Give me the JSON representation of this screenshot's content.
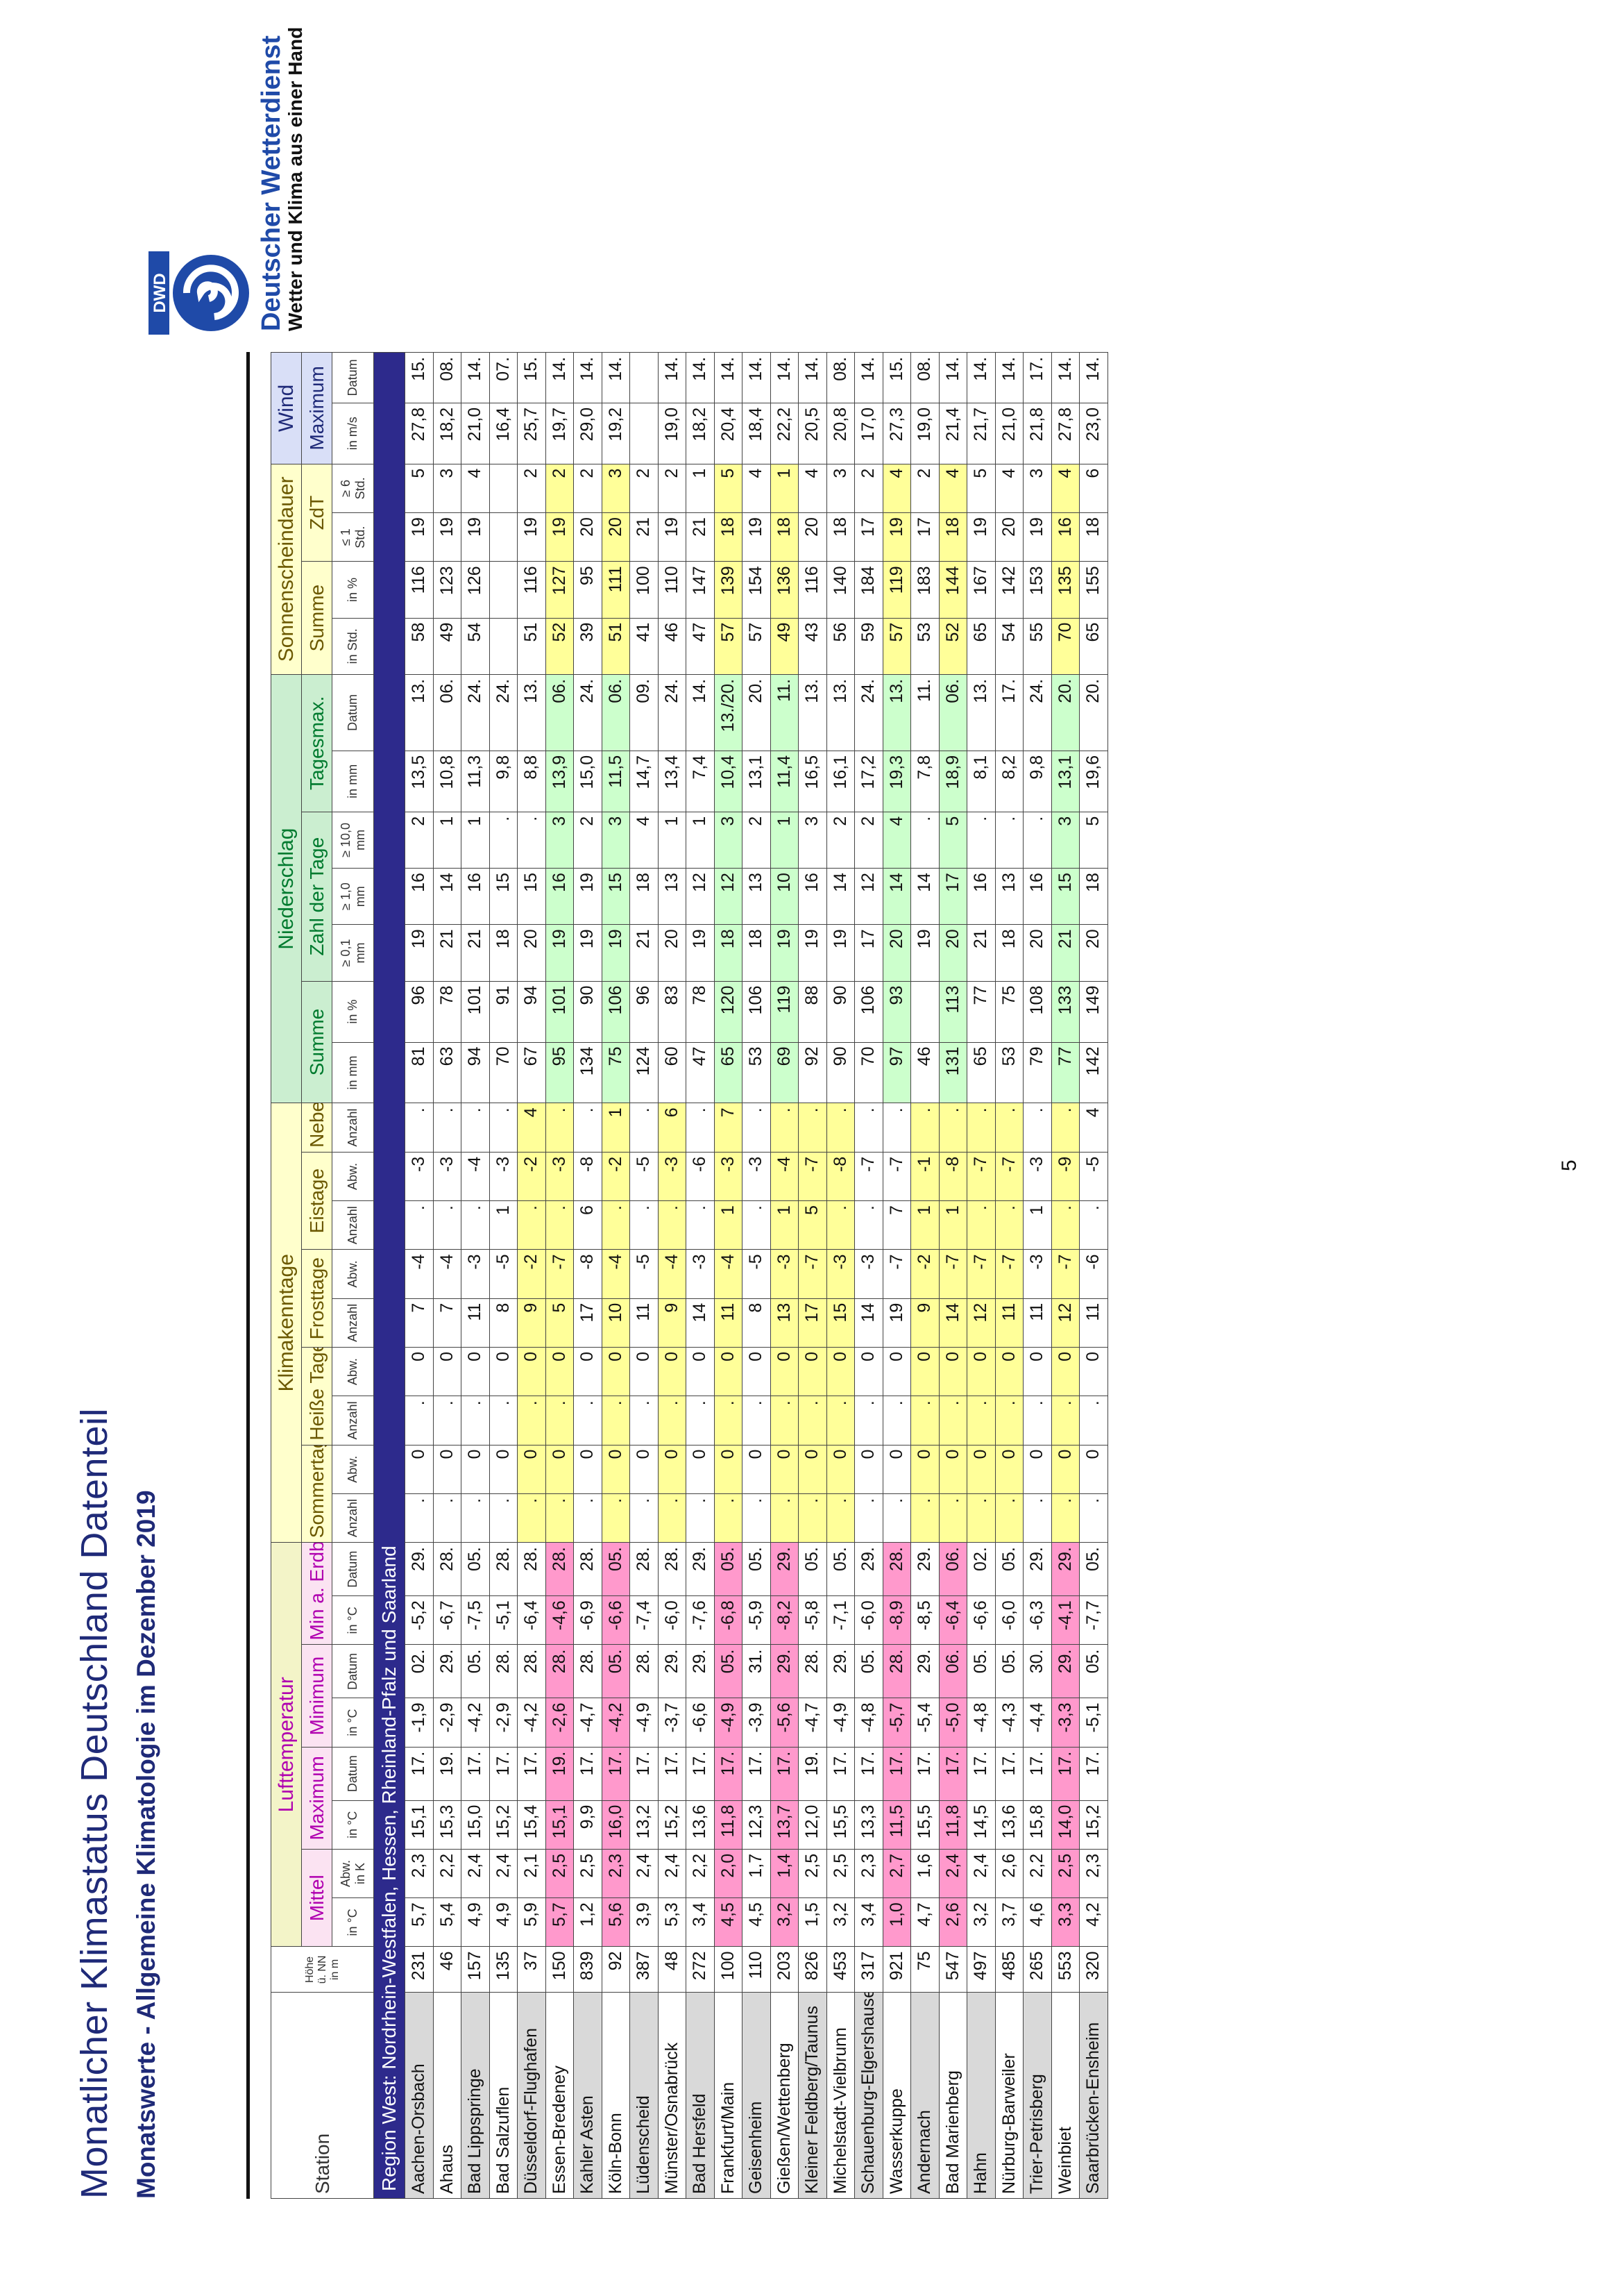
{
  "title": "Monatlicher Klimastatus Deutschland Datenteil",
  "subtitle": "Monatswerte - Allgemeine Klimatologie im Dezember 2019",
  "brand": {
    "name": "Deutscher Wetterdienst",
    "tagline": "Wetter und Klima aus einer Hand",
    "logo_text": "DWD"
  },
  "page_number": "5",
  "header": {
    "station": "Station",
    "hoehe": "Höhe ü. NN in m",
    "groups": {
      "luft": "Lufttemperatur",
      "klima": "Klimakenntage",
      "nieder": "Niederschlag",
      "sonne": "Sonnenscheindauer",
      "wind": "Wind"
    },
    "sub": {
      "mittel": "Mittel",
      "maximum": "Maximum",
      "minimum": "Minimum",
      "min_erdb": "Min a. Erdb",
      "sommertage": "Sommertage",
      "heisse": "Heiße Tage",
      "frosttage": "Frosttage",
      "eistage": "Eistage",
      "nebel": "Nebel",
      "summe": "Summe",
      "zahl": "Zahl der Tage",
      "tagesmax": "Tagesmax.",
      "sonne_summe": "Summe",
      "zst": "ZdT",
      "wind_max": "Maximum"
    },
    "units": [
      "in °C",
      "Abw. in K",
      "in °C",
      "Datum",
      "in °C",
      "Datum",
      "in °C",
      "Datum",
      "Anzahl",
      "Abw.",
      "Anzahl",
      "Abw.",
      "Anzahl",
      "Abw.",
      "Anzahl",
      "Abw.",
      "Anzahl",
      "in mm",
      "in %",
      "≥ 0,1 mm",
      "≥ 1,0 mm",
      "≥ 10,0 mm",
      "in mm",
      "Datum",
      "in Std.",
      "in %",
      "≤ 1 Std.",
      "≥ 6 Std.",
      "in m/s",
      "Datum"
    ]
  },
  "region": "Region West: Nordrhein-Westfalen, Hessen, Rheinland-Pfalz und Saarland",
  "rows": [
    [
      "Aachen-Orsbach",
      "231",
      "5,7",
      "2,3",
      "15,1",
      "17.",
      "-1,9",
      "02.",
      "-5,2",
      "29.",
      ".",
      "0",
      ".",
      "0",
      "7",
      "-4",
      ".",
      "-3",
      ".",
      "81",
      "96",
      "19",
      "16",
      "2",
      "13,5",
      "13.",
      "58",
      "116",
      "19",
      "5",
      "27,8",
      "15."
    ],
    [
      "Ahaus",
      "46",
      "5,4",
      "2,2",
      "15,3",
      "19.",
      "-2,9",
      "29.",
      "-6,7",
      "28.",
      ".",
      "0",
      ".",
      "0",
      "7",
      "-4",
      ".",
      "-3",
      ".",
      "63",
      "78",
      "21",
      "14",
      "1",
      "10,8",
      "06.",
      "49",
      "123",
      "19",
      "3",
      "18,2",
      "08."
    ],
    [
      "Bad Lippspringe",
      "157",
      "4,9",
      "2,4",
      "15,0",
      "17.",
      "-4,2",
      "05.",
      "-7,5",
      "05.",
      ".",
      "0",
      ".",
      "0",
      "11",
      "-3",
      ".",
      "-4",
      ".",
      "94",
      "101",
      "21",
      "16",
      "1",
      "11,3",
      "24.",
      "54",
      "126",
      "19",
      "4",
      "21,0",
      "14."
    ],
    [
      "Bad Salzuflen",
      "135",
      "4,9",
      "2,4",
      "15,2",
      "17.",
      "-2,9",
      "28.",
      "-5,1",
      "28.",
      ".",
      "0",
      ".",
      "0",
      "8",
      "-5",
      "1",
      "-3",
      ".",
      "70",
      "91",
      "18",
      "15",
      ".",
      "9,8",
      "24.",
      "",
      "",
      "",
      "",
      "16,4",
      "07."
    ],
    [
      "Düsseldorf-Flughafen",
      "37",
      "5,9",
      "2,1",
      "15,4",
      "17.",
      "-4,2",
      "28.",
      "-6,4",
      "28.",
      ".",
      "0",
      ".",
      "0",
      "9",
      "-2",
      ".",
      "-2",
      "4",
      "67",
      "94",
      "20",
      "15",
      ".",
      "8,8",
      "13.",
      "51",
      "116",
      "19",
      "2",
      "25,7",
      "15."
    ],
    [
      "Essen-Bredeney",
      "150",
      "5,7",
      "2,5",
      "15,1",
      "19.",
      "-2,6",
      "28.",
      "-4,6",
      "28.",
      ".",
      "0",
      ".",
      "0",
      "5",
      "-7",
      ".",
      "-3",
      ".",
      "95",
      "101",
      "19",
      "16",
      "3",
      "13,9",
      "06.",
      "52",
      "127",
      "19",
      "2",
      "19,7",
      "14."
    ],
    [
      "Kahler Asten",
      "839",
      "1,2",
      "2,5",
      "9,9",
      "17.",
      "-4,7",
      "28.",
      "-6,9",
      "28.",
      ".",
      "0",
      ".",
      "0",
      "17",
      "-8",
      "6",
      "-8",
      ".",
      "134",
      "90",
      "19",
      "19",
      "2",
      "15,0",
      "24.",
      "39",
      "95",
      "20",
      "2",
      "29,0",
      "14."
    ],
    [
      "Köln-Bonn",
      "92",
      "5,6",
      "2,3",
      "16,0",
      "17.",
      "-4,2",
      "05.",
      "-6,6",
      "05.",
      ".",
      "0",
      ".",
      "0",
      "10",
      "-4",
      ".",
      "-2",
      "1",
      "75",
      "106",
      "19",
      "15",
      "3",
      "11,5",
      "06.",
      "51",
      "111",
      "20",
      "3",
      "19,2",
      "14."
    ],
    [
      "Lüdenscheid",
      "387",
      "3,9",
      "2,4",
      "13,2",
      "17.",
      "-4,9",
      "28.",
      "-7,4",
      "28.",
      ".",
      "0",
      ".",
      "0",
      "11",
      "-5",
      ".",
      "-5",
      ".",
      "124",
      "96",
      "21",
      "18",
      "4",
      "14,7",
      "09.",
      "41",
      "100",
      "21",
      "2",
      "",
      ""
    ],
    [
      "Münster/Osnabrück",
      "48",
      "5,3",
      "2,4",
      "15,2",
      "17.",
      "-3,7",
      "29.",
      "-6,0",
      "28.",
      ".",
      "0",
      ".",
      "0",
      "9",
      "-4",
      ".",
      "-3",
      "6",
      "60",
      "83",
      "20",
      "13",
      "1",
      "13,4",
      "24.",
      "46",
      "110",
      "19",
      "2",
      "19,0",
      "14."
    ],
    [
      "Bad Hersfeld",
      "272",
      "3,4",
      "2,2",
      "13,6",
      "17.",
      "-6,6",
      "29.",
      "-7,6",
      "29.",
      ".",
      "0",
      ".",
      "0",
      "14",
      "-3",
      ".",
      "-6",
      ".",
      "47",
      "78",
      "19",
      "12",
      "1",
      "7,4",
      "14.",
      "47",
      "147",
      "21",
      "1",
      "18,2",
      "14."
    ],
    [
      "Frankfurt/Main",
      "100",
      "4,5",
      "2,0",
      "11,8",
      "17.",
      "-4,9",
      "05.",
      "-6,8",
      "05.",
      ".",
      "0",
      ".",
      "0",
      "11",
      "-4",
      "1",
      "-3",
      "7",
      "65",
      "120",
      "18",
      "12",
      "3",
      "10,4",
      "13./20.",
      "57",
      "139",
      "18",
      "5",
      "20,4",
      "14."
    ],
    [
      "Geisenheim",
      "110",
      "4,5",
      "1,7",
      "12,3",
      "17.",
      "-3,9",
      "31.",
      "-5,9",
      "05.",
      ".",
      "0",
      ".",
      "0",
      "8",
      "-5",
      ".",
      "-3",
      ".",
      "53",
      "106",
      "18",
      "13",
      "2",
      "13,1",
      "20.",
      "57",
      "154",
      "19",
      "4",
      "18,4",
      "14."
    ],
    [
      "Gießen/Wettenberg",
      "203",
      "3,2",
      "1,4",
      "13,7",
      "17.",
      "-5,6",
      "29.",
      "-8,2",
      "29.",
      ".",
      "0",
      ".",
      "0",
      "13",
      "-3",
      "1",
      "-4",
      ".",
      "69",
      "119",
      "19",
      "10",
      "1",
      "11,4",
      "11.",
      "49",
      "136",
      "18",
      "1",
      "22,2",
      "14."
    ],
    [
      "Kleiner Feldberg/Taunus",
      "826",
      "1,5",
      "2,5",
      "12,0",
      "19.",
      "-4,7",
      "28.",
      "-5,8",
      "05.",
      ".",
      "0",
      ".",
      "0",
      "17",
      "-7",
      "5",
      "-7",
      ".",
      "92",
      "88",
      "19",
      "16",
      "3",
      "16,5",
      "13.",
      "43",
      "116",
      "20",
      "4",
      "20,5",
      "14."
    ],
    [
      "Michelstadt-Vielbrunn",
      "453",
      "3,2",
      "2,5",
      "15,5",
      "17.",
      "-4,9",
      "29.",
      "-7,1",
      "05.",
      ".",
      "0",
      ".",
      "0",
      "15",
      "-3",
      ".",
      "-8",
      ".",
      "90",
      "90",
      "19",
      "14",
      "2",
      "16,1",
      "13.",
      "56",
      "140",
      "18",
      "3",
      "20,8",
      "08."
    ],
    [
      "Schauenburg-Elgershausen",
      "317",
      "3,4",
      "2,3",
      "13,3",
      "17.",
      "-4,8",
      "05.",
      "-6,0",
      "29.",
      ".",
      "0",
      ".",
      "0",
      "14",
      "-3",
      ".",
      "-7",
      ".",
      "70",
      "106",
      "17",
      "12",
      "2",
      "17,2",
      "24.",
      "59",
      "184",
      "17",
      "2",
      "17,0",
      "14."
    ],
    [
      "Wasserkuppe",
      "921",
      "1,0",
      "2,7",
      "11,5",
      "17.",
      "-5,7",
      "28.",
      "-8,9",
      "28.",
      ".",
      "0",
      ".",
      "0",
      "19",
      "-7",
      "7",
      "-7",
      ".",
      "97",
      "93",
      "20",
      "14",
      "4",
      "19,3",
      "13.",
      "57",
      "119",
      "19",
      "4",
      "27,3",
      "15."
    ],
    [
      "Andernach",
      "75",
      "4,7",
      "1,6",
      "15,5",
      "17.",
      "-5,4",
      "29.",
      "-8,5",
      "29.",
      ".",
      "0",
      ".",
      "0",
      "9",
      "-2",
      "1",
      "-1",
      ".",
      "46",
      "",
      "19",
      "14",
      ".",
      "7,8",
      "11.",
      "53",
      "183",
      "17",
      "2",
      "19,0",
      "08."
    ],
    [
      "Bad Marienberg",
      "547",
      "2,6",
      "2,4",
      "11,8",
      "17.",
      "-5,0",
      "06.",
      "-6,4",
      "06.",
      ".",
      "0",
      ".",
      "0",
      "14",
      "-7",
      "1",
      "-8",
      ".",
      "131",
      "113",
      "20",
      "17",
      "5",
      "18,9",
      "06.",
      "52",
      "144",
      "18",
      "4",
      "21,4",
      "14."
    ],
    [
      "Hahn",
      "497",
      "3,2",
      "2,4",
      "14,5",
      "17.",
      "-4,8",
      "05.",
      "-6,6",
      "02.",
      ".",
      "0",
      ".",
      "0",
      "12",
      "-7",
      ".",
      "-7",
      ".",
      "65",
      "77",
      "21",
      "16",
      ".",
      "8,1",
      "13.",
      "65",
      "167",
      "19",
      "5",
      "21,7",
      "14."
    ],
    [
      "Nürburg-Barweiler",
      "485",
      "3,7",
      "2,6",
      "13,6",
      "17.",
      "-4,3",
      "05.",
      "-6,0",
      "05.",
      ".",
      "0",
      ".",
      "0",
      "11",
      "-7",
      ".",
      "-7",
      ".",
      "53",
      "75",
      "18",
      "13",
      ".",
      "8,2",
      "17.",
      "54",
      "142",
      "20",
      "4",
      "21,0",
      "14."
    ],
    [
      "Trier-Petrisberg",
      "265",
      "4,6",
      "2,2",
      "15,8",
      "17.",
      "-4,4",
      "30.",
      "-6,3",
      "29.",
      ".",
      "0",
      ".",
      "0",
      "11",
      "-3",
      "1",
      "-3",
      ".",
      "79",
      "108",
      "20",
      "16",
      ".",
      "9,8",
      "24.",
      "55",
      "153",
      "19",
      "3",
      "21,8",
      "17."
    ],
    [
      "Weinbiet",
      "553",
      "3,3",
      "2,5",
      "14,0",
      "17.",
      "-3,3",
      "29.",
      "-4,1",
      "29.",
      ".",
      "0",
      ".",
      "0",
      "12",
      "-7",
      ".",
      "-9",
      ".",
      "77",
      "133",
      "21",
      "15",
      "3",
      "13,1",
      "20.",
      "70",
      "135",
      "16",
      "4",
      "27,8",
      "14."
    ],
    [
      "Saarbrücken-Ensheim",
      "320",
      "4,2",
      "2,3",
      "15,2",
      "17.",
      "-5,1",
      "05.",
      "-7,7",
      "05.",
      ".",
      "0",
      ".",
      "0",
      "11",
      "-6",
      ".",
      "-5",
      "4",
      "142",
      "149",
      "20",
      "18",
      "5",
      "19,6",
      "20.",
      "65",
      "155",
      "18",
      "6",
      "23,0",
      "14."
    ]
  ]
}
